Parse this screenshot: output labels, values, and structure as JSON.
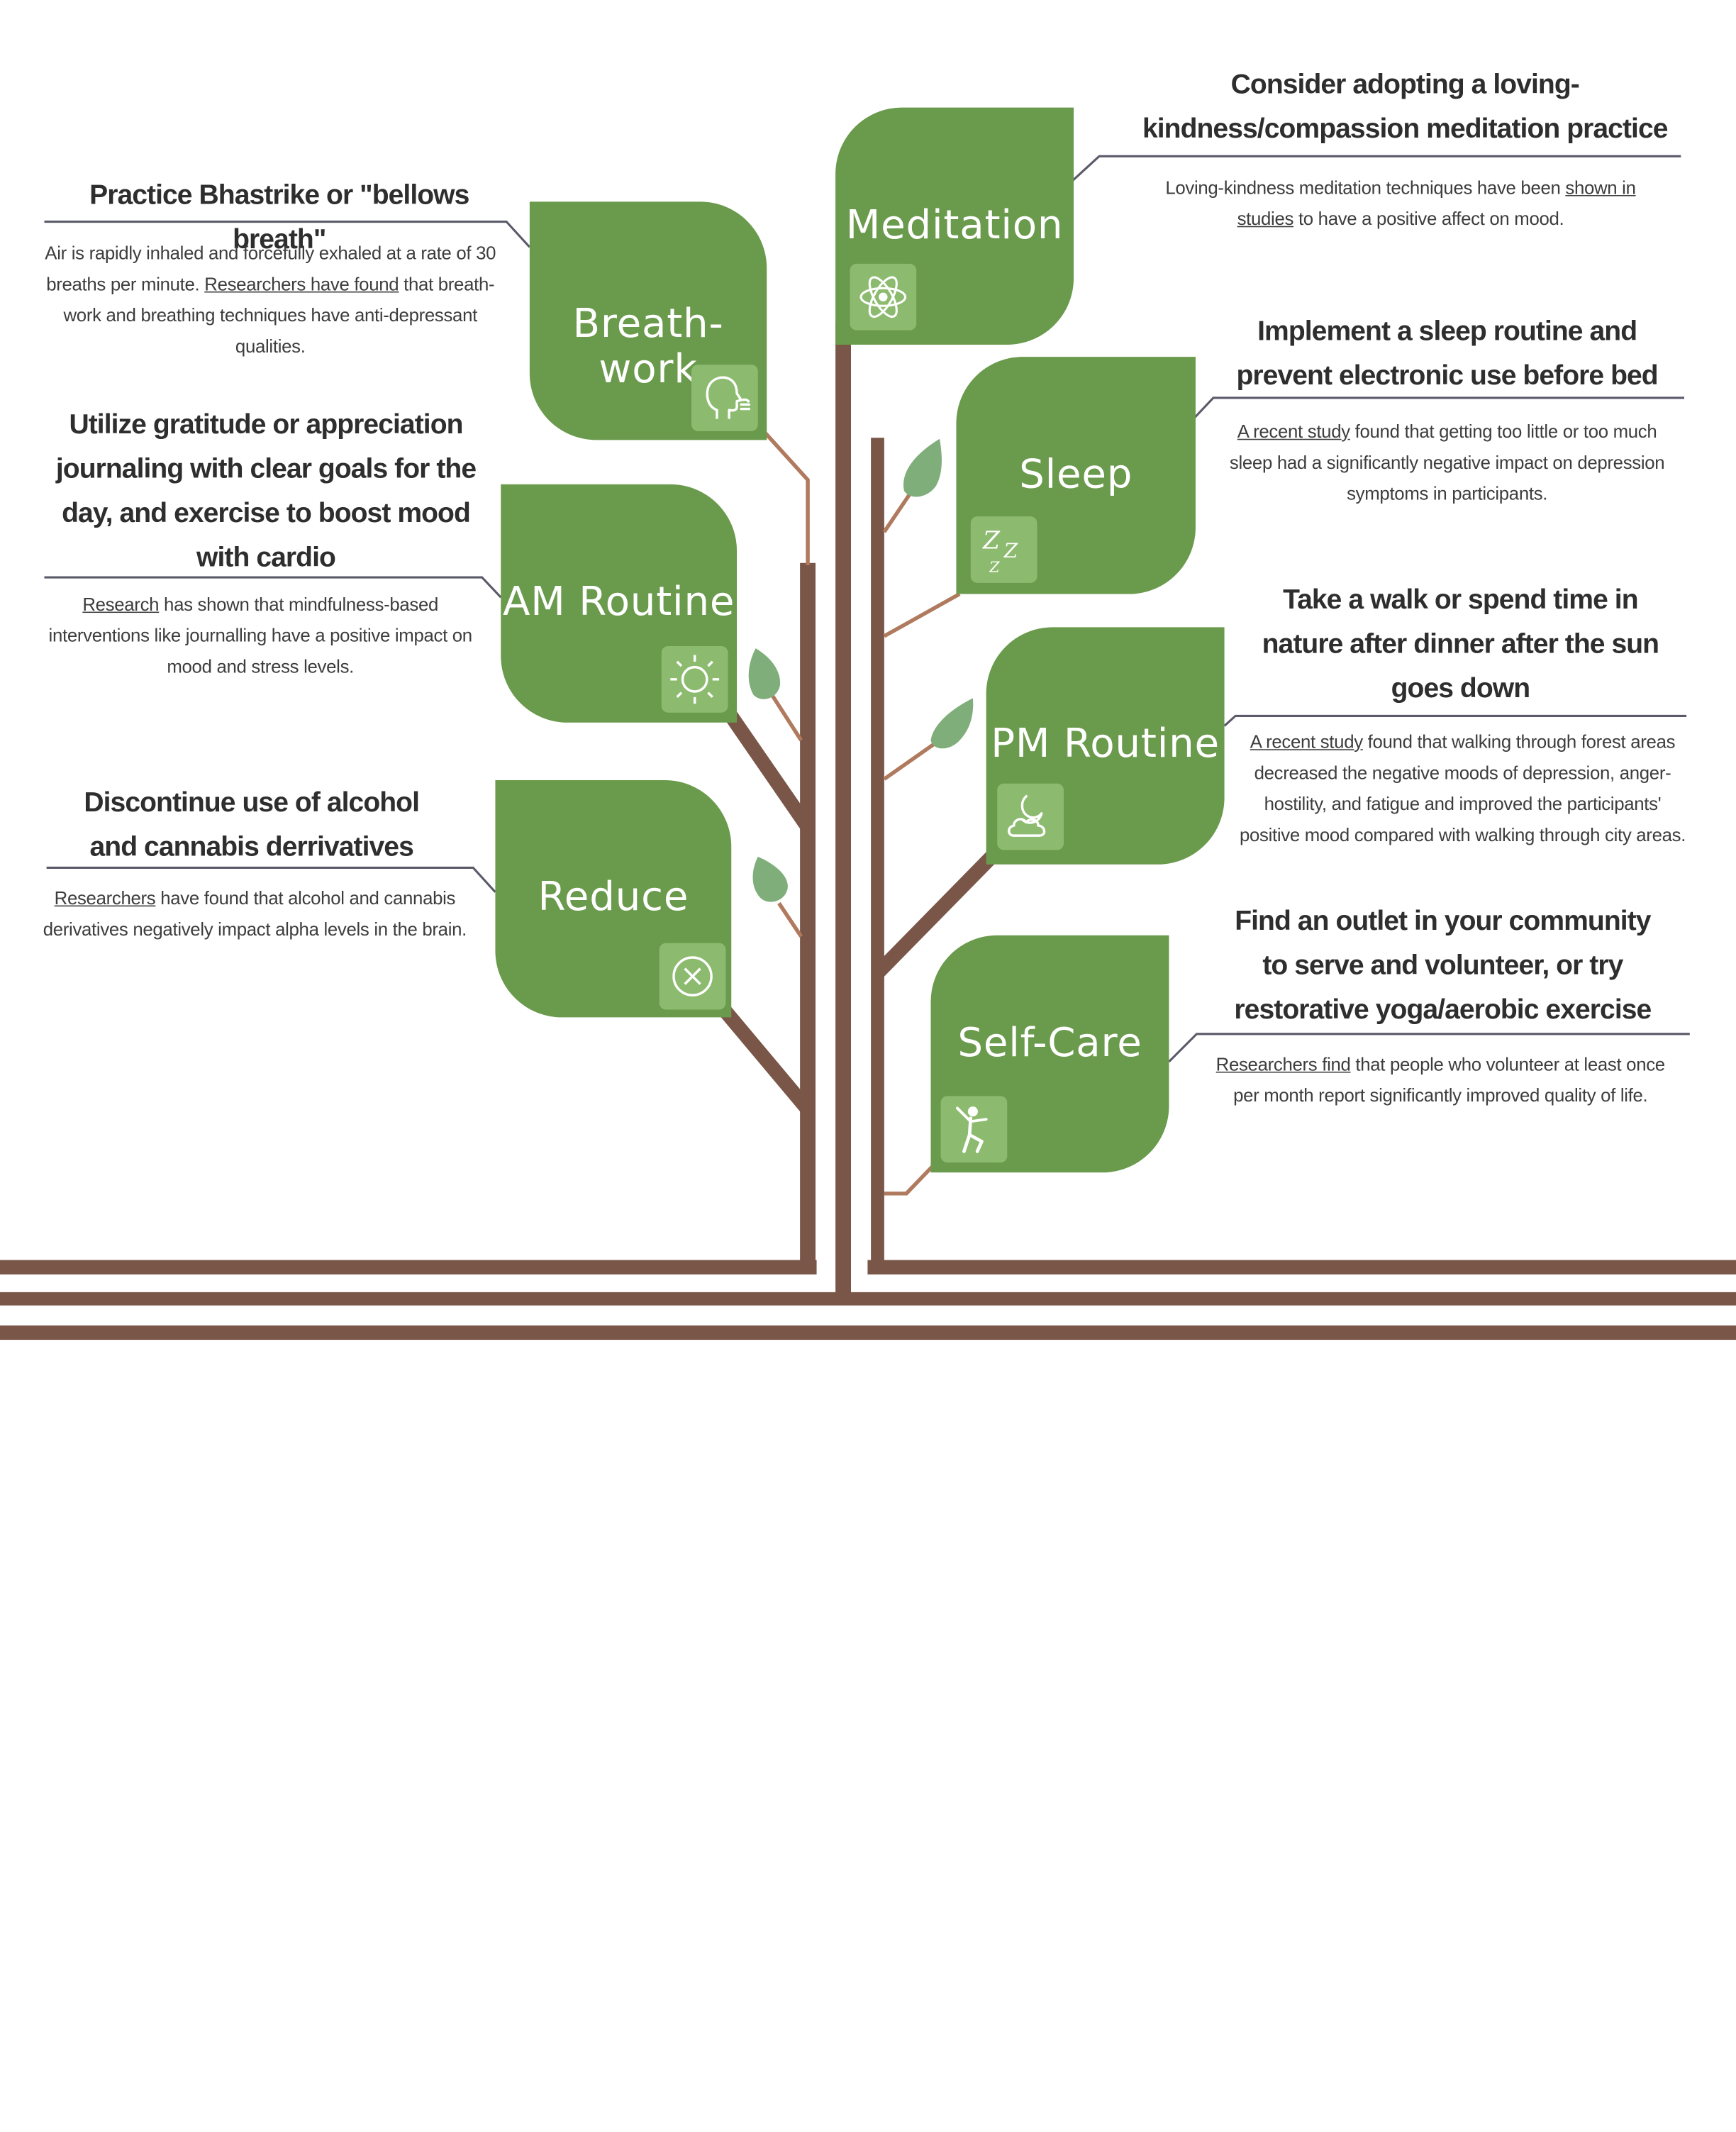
{
  "palette": {
    "leaf": "#6a9a4c",
    "icon_bg": "#8cbb6f",
    "trunk": "#7a5648",
    "twig": "#b07a5e",
    "small_leaf": "#7fae7a",
    "line": "#5a5a6a"
  },
  "leaves": [
    {
      "title": "Meditation",
      "icon": "atom-icon"
    },
    {
      "title": "Breath-work",
      "icon": "breathing-face-icon"
    },
    {
      "title": "Sleep",
      "icon": "zzz-icon"
    },
    {
      "title": "AM Routine",
      "icon": "sun-icon"
    },
    {
      "title": "PM Routine",
      "icon": "moon-cloud-icon"
    },
    {
      "title": "Reduce",
      "icon": "x-circle-icon"
    },
    {
      "title": "Self-Care",
      "icon": "dancer-icon"
    }
  ],
  "callouts": {
    "breath": {
      "heading": "Practice Bhastrike or \"bellows breath\"",
      "body_1": "Air is rapidly inhaled and forcefully exhaled at a rate of 30 breaths per minute. ",
      "link": "Researchers have found",
      "body_2": " that breath-work and breathing techniques have anti-depressant qualities."
    },
    "am": {
      "heading": "Utilize gratitude or appreciation journaling with clear goals for the day, and exercise to boost mood with cardio",
      "link": "Research",
      "body_2": " has shown that mindfulness-based interventions like journalling have a positive impact on mood and stress levels."
    },
    "reduce": {
      "heading": "Discontinue use of alcohol and cannabis derrivatives",
      "link": "Researchers",
      "body_2": " have found that alcohol and cannabis derivatives negatively impact alpha levels in the brain."
    },
    "meditation": {
      "heading": "Consider adopting a loving-kindness/compassion meditation practice",
      "body_1": "Loving-kindness meditation techniques have been ",
      "link": "shown in studies",
      "body_2": " to have a positive affect on mood."
    },
    "sleep": {
      "heading": "Implement a sleep routine and prevent electronic use before bed",
      "link": "A recent study",
      "body_2": " found that getting too little or too much sleep had a significantly negative impact on depression symptoms in participants."
    },
    "pm": {
      "heading": "Take a walk or spend time in nature after dinner after the sun goes down",
      "link": "A recent study",
      "body_2": " found that walking through forest areas decreased the negative moods of depression, anger-hostility, and fatigue and improved the participants' positive mood compared with walking through city areas."
    },
    "selfcare": {
      "heading": "Find an outlet in your community to serve and volunteer, or try restorative yoga/aerobic exercise",
      "link": "Researchers find",
      "body_2": " that people who volunteer at least once per month report significantly improved quality of life."
    }
  }
}
